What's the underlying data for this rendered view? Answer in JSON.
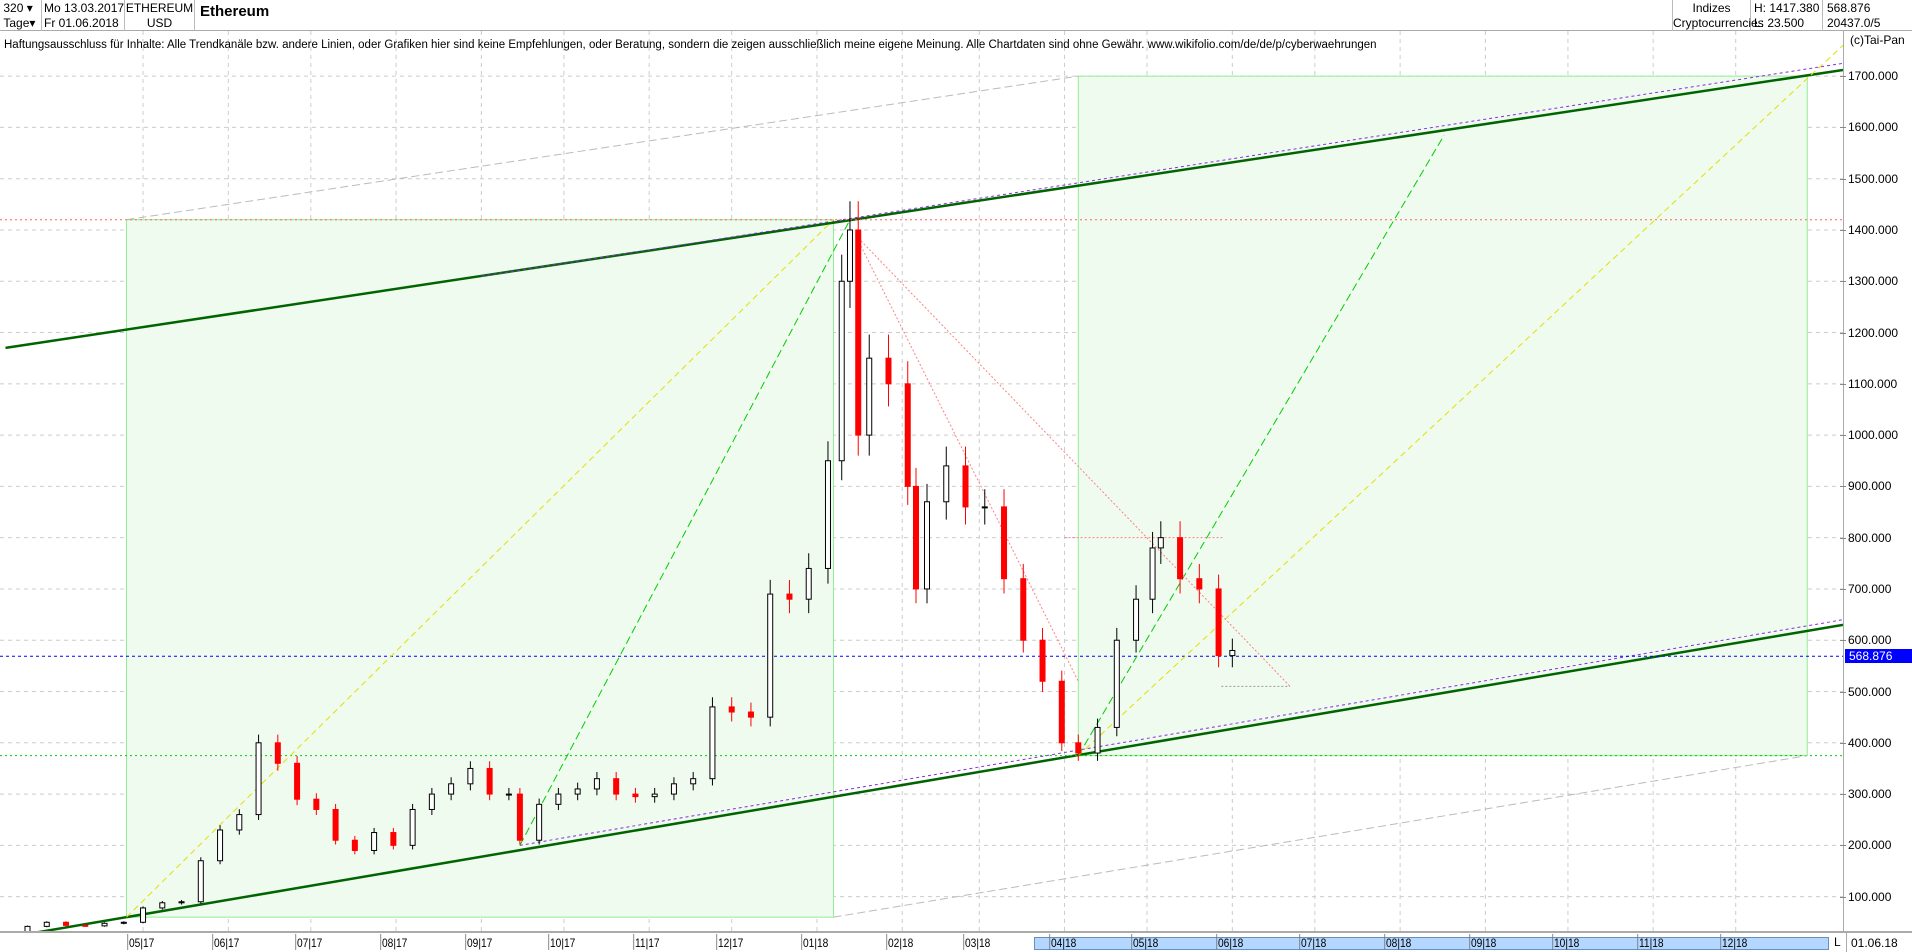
{
  "header": {
    "bars": "320",
    "bars_dropdown_icon": "chevron-down-icon",
    "period": "Tage",
    "start_date": "Mo 13.03.2017",
    "end_date": "Fr 01.06.2018",
    "symbol": "ETHEREUM",
    "currency": "USD",
    "title": "Ethereum",
    "group": "Indizes",
    "subgroup": "Cryptocurrencies",
    "high": "H: 1417.380",
    "low": "L: 23.500",
    "last": "568.876",
    "volume": "20437.0/5"
  },
  "disclaimer": "Haftungsausschluss für Inhalte: Alle Trendkanäle bzw. andere Linien, oder Grafiken hier sind keine Empfehlungen, oder Beratung, sondern die zeigen ausschließlich meine eigene Meinung. Alle Chartdaten sind ohne Gewähr.  www.wikifolio.com/de/de/p/cyberwaehrungen",
  "copyright": "(c)Tai-Pan",
  "xaxis": {
    "scroll_marker": "L",
    "current_date": "01.06.18"
  },
  "chart_data": {
    "type": "candlestick",
    "title": "Ethereum",
    "xlim": [
      "2017-03-10",
      "2019-01-09"
    ],
    "ylim": [
      33,
      1788
    ],
    "grid": true,
    "x_ticks": [
      [
        "05",
        "17",
        "2017-05-01"
      ],
      [
        "06",
        "17",
        "2017-06-01"
      ],
      [
        "07",
        "17",
        "2017-07-01"
      ],
      [
        "08",
        "17",
        "2017-08-01"
      ],
      [
        "09",
        "17",
        "2017-09-01"
      ],
      [
        "10",
        "17",
        "2017-10-01"
      ],
      [
        "11",
        "17",
        "2017-11-01"
      ],
      [
        "12",
        "17",
        "2017-12-01"
      ],
      [
        "01",
        "18",
        "2018-01-01"
      ],
      [
        "02",
        "18",
        "2018-02-01"
      ],
      [
        "03",
        "18",
        "2018-03-01"
      ],
      [
        "04",
        "18",
        "2018-04-01"
      ],
      [
        "05",
        "18",
        "2018-05-01"
      ],
      [
        "06",
        "18",
        "2018-06-01"
      ],
      [
        "07",
        "18",
        "2018-07-01"
      ],
      [
        "08",
        "18",
        "2018-08-01"
      ],
      [
        "09",
        "18",
        "2018-09-01"
      ],
      [
        "10",
        "18",
        "2018-10-01"
      ],
      [
        "11",
        "18",
        "2018-11-01"
      ],
      [
        "12",
        "18",
        "2018-12-01"
      ]
    ],
    "y_ticks": [
      "100.000",
      "200.000",
      "300.000",
      "400.000",
      "500.000",
      "600.000",
      "700.000",
      "800.000",
      "900.000",
      "1000.000",
      "1100.000",
      "1200.000",
      "1300.000",
      "1400.000",
      "1500.000",
      "1600.000",
      "1700.000"
    ],
    "last_price": 568.876,
    "colors": {
      "up": "#000000",
      "down": "#ff0000",
      "channel": "#008000",
      "box": "#90ee90",
      "current": "#0000ff"
    },
    "closes": [
      [
        "2017-03-13",
        28
      ],
      [
        "2017-03-20",
        42
      ],
      [
        "2017-03-27",
        50
      ],
      [
        "2017-04-03",
        44
      ],
      [
        "2017-04-10",
        43
      ],
      [
        "2017-04-17",
        48
      ],
      [
        "2017-04-24",
        50
      ],
      [
        "2017-05-01",
        78
      ],
      [
        "2017-05-08",
        88
      ],
      [
        "2017-05-15",
        90
      ],
      [
        "2017-05-22",
        170
      ],
      [
        "2017-05-29",
        230
      ],
      [
        "2017-06-05",
        260
      ],
      [
        "2017-06-12",
        400
      ],
      [
        "2017-06-19",
        360
      ],
      [
        "2017-06-26",
        290
      ],
      [
        "2017-07-03",
        270
      ],
      [
        "2017-07-10",
        210
      ],
      [
        "2017-07-17",
        190
      ],
      [
        "2017-07-24",
        225
      ],
      [
        "2017-07-31",
        200
      ],
      [
        "2017-08-07",
        270
      ],
      [
        "2017-08-14",
        300
      ],
      [
        "2017-08-21",
        320
      ],
      [
        "2017-08-28",
        350
      ],
      [
        "2017-09-04",
        300
      ],
      [
        "2017-09-11",
        300
      ],
      [
        "2017-09-15",
        210
      ],
      [
        "2017-09-22",
        280
      ],
      [
        "2017-09-29",
        300
      ],
      [
        "2017-10-06",
        310
      ],
      [
        "2017-10-13",
        330
      ],
      [
        "2017-10-20",
        300
      ],
      [
        "2017-10-27",
        295
      ],
      [
        "2017-11-03",
        300
      ],
      [
        "2017-11-10",
        320
      ],
      [
        "2017-11-17",
        330
      ],
      [
        "2017-11-24",
        470
      ],
      [
        "2017-12-01",
        460
      ],
      [
        "2017-12-08",
        450
      ],
      [
        "2017-12-15",
        690
      ],
      [
        "2017-12-22",
        680
      ],
      [
        "2017-12-29",
        740
      ],
      [
        "2018-01-05",
        950
      ],
      [
        "2018-01-10",
        1300
      ],
      [
        "2018-01-13",
        1400
      ],
      [
        "2018-01-16",
        1000
      ],
      [
        "2018-01-20",
        1150
      ],
      [
        "2018-01-27",
        1100
      ],
      [
        "2018-02-03",
        900
      ],
      [
        "2018-02-06",
        700
      ],
      [
        "2018-02-10",
        870
      ],
      [
        "2018-02-17",
        940
      ],
      [
        "2018-02-24",
        860
      ],
      [
        "2018-03-03",
        860
      ],
      [
        "2018-03-10",
        720
      ],
      [
        "2018-03-17",
        600
      ],
      [
        "2018-03-24",
        520
      ],
      [
        "2018-03-31",
        400
      ],
      [
        "2018-04-06",
        380
      ],
      [
        "2018-04-13",
        430
      ],
      [
        "2018-04-20",
        600
      ],
      [
        "2018-04-27",
        680
      ],
      [
        "2018-05-03",
        780
      ],
      [
        "2018-05-06",
        800
      ],
      [
        "2018-05-13",
        720
      ],
      [
        "2018-05-20",
        700
      ],
      [
        "2018-05-27",
        570
      ],
      [
        "2018-06-01",
        580
      ]
    ],
    "lines": [
      {
        "kind": "channel-upper",
        "from": [
          "2017-03-12",
          1170
        ],
        "to": [
          "2019-01-09",
          1712
        ],
        "color": "#006400",
        "dash": "none",
        "width": 2.5
      },
      {
        "kind": "channel-upper-parallel",
        "from": [
          "2017-09-01",
          1310
        ],
        "to": [
          "2019-01-09",
          1725
        ],
        "color": "#8a2be2",
        "dash": "3,3",
        "width": 1
      },
      {
        "kind": "channel-lower",
        "from": [
          "2017-03-10",
          18
        ],
        "to": [
          "2019-01-09",
          630
        ],
        "color": "#006400",
        "dash": "none",
        "width": 2.5
      },
      {
        "kind": "channel-lower-parallel",
        "from": [
          "2017-09-15",
          200
        ],
        "to": [
          "2019-01-09",
          640
        ],
        "color": "#8a2be2",
        "dash": "3,3",
        "width": 1
      },
      {
        "kind": "horizontal",
        "from": [
          "2017-03-10",
          1420
        ],
        "to": [
          "2019-01-09",
          1420
        ],
        "color": "#ff6060",
        "dash": "2,3",
        "width": 1
      },
      {
        "kind": "horizontal",
        "from": [
          "2017-03-10",
          375
        ],
        "to": [
          "2019-01-09",
          375
        ],
        "color": "#00cc00",
        "dash": "2,3",
        "width": 1
      },
      {
        "kind": "horizontal",
        "from": [
          "2017-03-10",
          568.876
        ],
        "to": [
          "2019-01-09",
          568.876
        ],
        "color": "#0000ff",
        "dash": "3,3",
        "width": 1
      },
      {
        "kind": "gray-dashed",
        "from": [
          "2017-04-25",
          1420
        ],
        "to": [
          "2018-04-06",
          1700
        ],
        "color": "#bbbbbb",
        "dash": "8,4",
        "width": 1
      },
      {
        "kind": "gray-dashed",
        "from": [
          "2018-01-07",
          60
        ],
        "to": [
          "2018-12-27",
          375
        ],
        "color": "#bbbbbb",
        "dash": "8,4",
        "width": 1
      },
      {
        "kind": "yellow-diagonal",
        "from": [
          "2017-04-25",
          60
        ],
        "to": [
          "2018-01-07",
          1420
        ],
        "color": "#e0e000",
        "dash": "6,4",
        "width": 1
      },
      {
        "kind": "yellow-diagonal",
        "from": [
          "2018-04-06",
          375
        ],
        "to": [
          "2019-01-09",
          1760
        ],
        "color": "#e0e000",
        "dash": "6,4",
        "width": 1
      },
      {
        "kind": "green-diagonal",
        "from": [
          "2017-09-15",
          200
        ],
        "to": [
          "2018-01-13",
          1420
        ],
        "color": "#00cc00",
        "dash": "8,4",
        "width": 1
      },
      {
        "kind": "green-diagonal",
        "from": [
          "2018-04-06",
          375
        ],
        "to": [
          "2018-08-17",
          1585
        ],
        "color": "#00cc00",
        "dash": "8,4",
        "width": 1
      },
      {
        "kind": "red-dotted",
        "from": [
          "2018-01-15",
          1390
        ],
        "to": [
          "2018-06-22",
          510
        ],
        "color": "#ff8080",
        "dash": "2,2",
        "width": 1
      },
      {
        "kind": "red-dotted",
        "from": [
          "2018-01-15",
          1390
        ],
        "to": [
          "2018-04-06",
          520
        ],
        "color": "#ff8080",
        "dash": "2,2",
        "width": 1
      },
      {
        "kind": "red-dotted",
        "from": [
          "2018-04-01",
          800
        ],
        "to": [
          "2018-05-29",
          800
        ],
        "color": "#ff8080",
        "dash": "2,2",
        "width": 1
      },
      {
        "kind": "gray-short",
        "from": [
          "2018-05-28",
          510
        ],
        "to": [
          "2018-06-22",
          510
        ],
        "color": "#999999",
        "dash": "2,2",
        "width": 1
      }
    ],
    "boxes": [
      {
        "from": [
          "2017-04-25",
          60
        ],
        "to": [
          "2018-01-07",
          1420
        ]
      },
      {
        "from": [
          "2018-04-06",
          375
        ],
        "to": [
          "2018-12-27",
          1700
        ]
      }
    ]
  }
}
